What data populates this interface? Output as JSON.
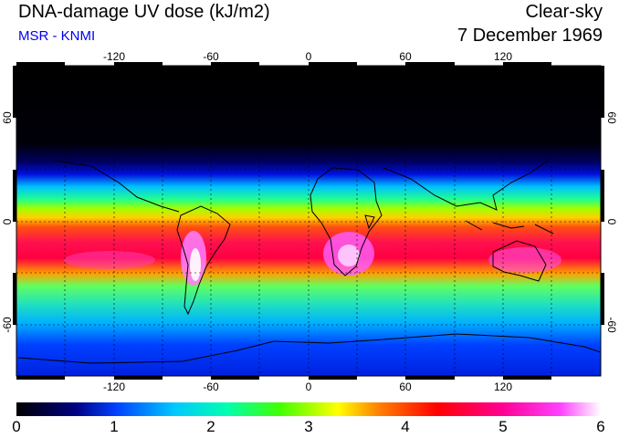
{
  "header": {
    "title": "DNA-damage UV dose (kJ/m2)",
    "source": "MSR - KNMI",
    "sky_condition": "Clear-sky",
    "date": "7 December 1969"
  },
  "map": {
    "projection": "equirectangular",
    "lon_range": [
      -180,
      180
    ],
    "lat_range": [
      -90,
      90
    ],
    "lon_tick_labels": [
      "-120",
      "-60",
      "0",
      "60",
      "120"
    ],
    "lat_tick_labels_left": [
      "60",
      "0",
      "-60"
    ],
    "lat_tick_labels_right": [
      "60",
      "0",
      "-60"
    ],
    "grid": "dashed, every 30 degrees",
    "coastlines": true
  },
  "colorbar": {
    "min": 0,
    "max": 6,
    "tick_labels": [
      "0",
      "1",
      "2",
      "3",
      "4",
      "5",
      "6"
    ],
    "colors": [
      "#000000",
      "#0000a0",
      "#0040ff",
      "#00e8ff",
      "#00ff60",
      "#ffff00",
      "#ff8000",
      "#ff0000",
      "#ff00a0",
      "#ff40ff",
      "#ffffff"
    ]
  }
}
